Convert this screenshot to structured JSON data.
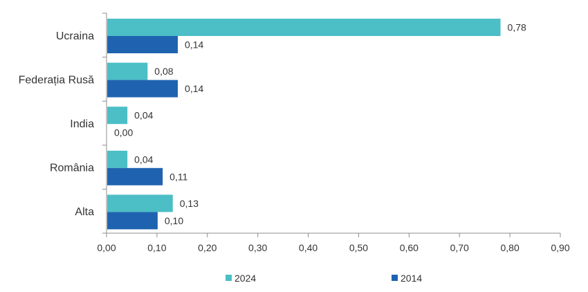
{
  "chart_data": {
    "type": "bar",
    "orientation": "horizontal",
    "categories": [
      "Ucraina",
      "Federația Rusă",
      "India",
      "România",
      "Alta"
    ],
    "series": [
      {
        "name": "2024",
        "color": "#4BBEC6",
        "values": [
          0.78,
          0.08,
          0.04,
          0.04,
          0.13
        ],
        "labels": [
          "0,78",
          "0,08",
          "0,04",
          "0,04",
          "0,13"
        ]
      },
      {
        "name": "2014",
        "color": "#1F63B0",
        "values": [
          0.14,
          0.14,
          0.0,
          0.11,
          0.1
        ],
        "labels": [
          "0,14",
          "0,14",
          "0,00",
          "0,11",
          "0,10"
        ]
      }
    ],
    "xlim": [
      0,
      0.9
    ],
    "xticks": [
      "0,00",
      "0,10",
      "0,20",
      "0,30",
      "0,40",
      "0,50",
      "0,60",
      "0,70",
      "0,80",
      "0,90"
    ],
    "grid": false,
    "legend_position": "bottom"
  }
}
